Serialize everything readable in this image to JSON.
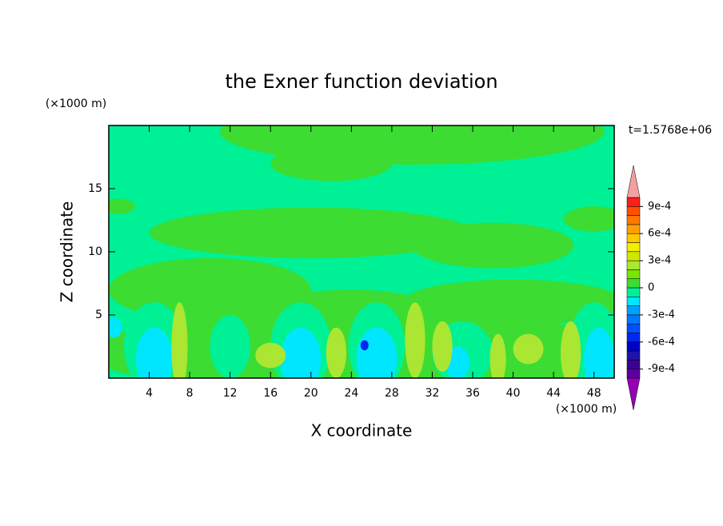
{
  "chart_data": {
    "type": "contour",
    "title": "the Exner function deviation",
    "xlabel": "X coordinate",
    "ylabel": "Z coordinate",
    "x_unit": "(×1000 m)",
    "y_unit": "(×1000 m)",
    "annotation": "t=1.5768e+06",
    "xlim": [
      0,
      50
    ],
    "ylim": [
      0,
      20
    ],
    "xticks": [
      4,
      8,
      12,
      16,
      20,
      24,
      28,
      32,
      36,
      40,
      44,
      48
    ],
    "yticks": [
      5,
      10,
      15
    ],
    "colorbar": {
      "levels": [
        -0.001,
        -0.0009,
        -0.0008,
        -0.0007,
        -0.0006,
        -0.0005,
        -0.0004,
        -0.0003,
        -0.0002,
        -0.0001,
        0,
        0.0001,
        0.0002,
        0.0003,
        0.0004,
        0.0005,
        0.0006,
        0.0007,
        0.0008,
        0.0009,
        0.001
      ],
      "colors": [
        "#9600b4",
        "#5a00a0",
        "#3c0096",
        "#1e14aa",
        "#0000c8",
        "#0028f0",
        "#0050ff",
        "#0078ff",
        "#00a0ff",
        "#00e6ff",
        "#00f096",
        "#3cdc32",
        "#78e600",
        "#aae632",
        "#d2e600",
        "#f0f000",
        "#ffc800",
        "#ffa000",
        "#ff7800",
        "#ff5000",
        "#ff1e1e",
        "#f4a0a0"
      ],
      "ticks": [
        {
          "value": 0.0009,
          "label": "9e-4"
        },
        {
          "value": 0.0006,
          "label": "6e-4"
        },
        {
          "value": 0.0003,
          "label": "3e-4"
        },
        0,
        {
          "value": -0.0003,
          "label": "-3e-4"
        },
        {
          "value": -0.0006,
          "label": "-6e-4"
        },
        {
          "value": -0.0009,
          "label": "-9e-4"
        }
      ]
    },
    "background_value": -5e-05,
    "field": [
      {
        "x": 30,
        "z": 19.5,
        "rx": 19,
        "rz": 2.6,
        "value": 5e-05
      },
      {
        "x": 22,
        "z": 17,
        "rx": 6,
        "rz": 1.4,
        "value": 5e-05
      },
      {
        "x": 1,
        "z": 13.6,
        "rx": 1.6,
        "rz": 0.6,
        "value": 5e-05
      },
      {
        "x": 20,
        "z": 11.5,
        "rx": 16,
        "rz": 2,
        "value": 5e-05
      },
      {
        "x": 38,
        "z": 10.5,
        "rx": 8,
        "rz": 1.8,
        "value": 5e-05
      },
      {
        "x": 48,
        "z": 12.6,
        "rx": 3,
        "rz": 1,
        "value": 5e-05
      },
      {
        "x": 10,
        "z": 7,
        "rx": 10,
        "rz": 2.5,
        "value": 5e-05
      },
      {
        "x": 40,
        "z": 6,
        "rx": 11,
        "rz": 1.8,
        "value": 5e-05
      },
      {
        "x": 24,
        "z": 5.5,
        "rx": 8,
        "rz": 1.5,
        "value": 5e-05
      },
      {
        "x": 25,
        "z": 2,
        "rx": 27,
        "rz": 3.3,
        "value": 5e-05
      },
      {
        "x": 4.5,
        "z": 2.5,
        "rx": 3,
        "rz": 3.5,
        "value": -5e-05
      },
      {
        "x": 19,
        "z": 2.5,
        "rx": 3,
        "rz": 3.5,
        "value": -5e-05
      },
      {
        "x": 26.5,
        "z": 2.5,
        "rx": 2.8,
        "rz": 3.5,
        "value": -5e-05
      },
      {
        "x": 35,
        "z": 2,
        "rx": 3,
        "rz": 2.5,
        "value": -5e-05
      },
      {
        "x": 48,
        "z": 2.5,
        "rx": 2.5,
        "rz": 3.5,
        "value": -5e-05
      },
      {
        "x": 12,
        "z": 2.5,
        "rx": 2,
        "rz": 2.5,
        "value": -5e-05
      },
      {
        "x": 4.5,
        "z": 1.5,
        "rx": 1.8,
        "rz": 2.5,
        "value": -0.00015
      },
      {
        "x": 19,
        "z": 1.5,
        "rx": 2,
        "rz": 2.5,
        "value": -0.00015
      },
      {
        "x": 26.5,
        "z": 1.5,
        "rx": 2,
        "rz": 2.5,
        "value": -0.00015
      },
      {
        "x": 34.5,
        "z": 1.2,
        "rx": 1.2,
        "rz": 1.3,
        "value": -0.00015
      },
      {
        "x": 48.5,
        "z": 1.5,
        "rx": 1.5,
        "rz": 2.5,
        "value": -0.00015
      },
      {
        "x": 0.5,
        "z": 4,
        "rx": 0.8,
        "rz": 0.8,
        "value": -0.00015
      },
      {
        "x": 7,
        "z": 2.5,
        "rx": 0.8,
        "rz": 3.5,
        "value": 0.00025
      },
      {
        "x": 16,
        "z": 1.8,
        "rx": 1.5,
        "rz": 1,
        "value": 0.00025
      },
      {
        "x": 22.5,
        "z": 2,
        "rx": 1,
        "rz": 2,
        "value": 0.00025
      },
      {
        "x": 30.3,
        "z": 3,
        "rx": 1,
        "rz": 3,
        "value": 0.00025
      },
      {
        "x": 33,
        "z": 2.5,
        "rx": 1,
        "rz": 2,
        "value": 0.00025
      },
      {
        "x": 38.5,
        "z": 1.5,
        "rx": 0.8,
        "rz": 2,
        "value": 0.00025
      },
      {
        "x": 41.5,
        "z": 2.3,
        "rx": 1.5,
        "rz": 1.2,
        "value": 0.00025
      },
      {
        "x": 45.7,
        "z": 2,
        "rx": 1,
        "rz": 2.5,
        "value": 0.00025
      },
      {
        "x": 25.3,
        "z": 2.6,
        "rx": 0.4,
        "rz": 0.4,
        "value": -0.00055
      }
    ]
  }
}
